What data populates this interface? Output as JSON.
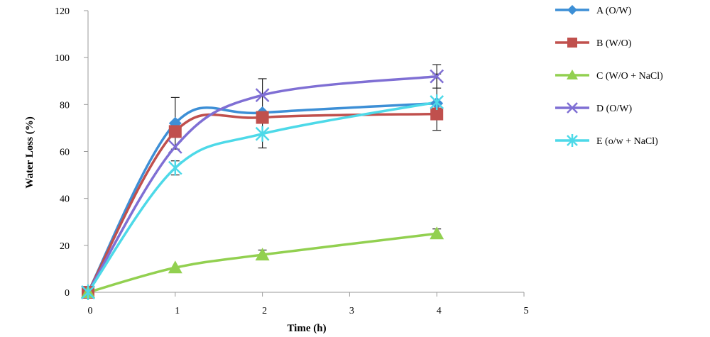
{
  "chart_data": {
    "type": "line",
    "xlabel": "Time (h)",
    "ylabel": "Water Loss (%)",
    "x": [
      0,
      1,
      2,
      4
    ],
    "xlim": [
      0,
      5
    ],
    "ylim": [
      0,
      120
    ],
    "xticks": [
      "0",
      "1",
      "2",
      "3",
      "4",
      "5"
    ],
    "yticks": [
      "0",
      "20",
      "40",
      "60",
      "80",
      "100",
      "120"
    ],
    "legend_position": "right",
    "grid": false,
    "smooth": true,
    "series": [
      {
        "name": "A (O/W)",
        "color": "#3d8fd6",
        "marker": "diamond",
        "values": [
          0,
          72,
          76.5,
          80.5
        ],
        "error": [
          0,
          11,
          0,
          0
        ]
      },
      {
        "name": "B (W/O)",
        "color": "#c0504d",
        "marker": "square",
        "values": [
          0,
          68.5,
          74.5,
          76
        ],
        "error": [
          0,
          0,
          0,
          0
        ]
      },
      {
        "name": "C (W/O + NaCl)",
        "color": "#92d050",
        "marker": "triangle",
        "values": [
          0,
          10.5,
          16,
          25
        ],
        "error": [
          0,
          0,
          2,
          2
        ]
      },
      {
        "name": "D (O/W)",
        "color": "#7f6fd4",
        "marker": "x",
        "values": [
          0,
          62,
          84,
          92
        ],
        "error": [
          0,
          0,
          7,
          5
        ]
      },
      {
        "name": "E (o/w + NaCl)",
        "color": "#4dd9e8",
        "marker": "asterisk",
        "values": [
          0,
          53,
          67.5,
          81
        ],
        "error": [
          0,
          3,
          6,
          12
        ]
      }
    ]
  }
}
